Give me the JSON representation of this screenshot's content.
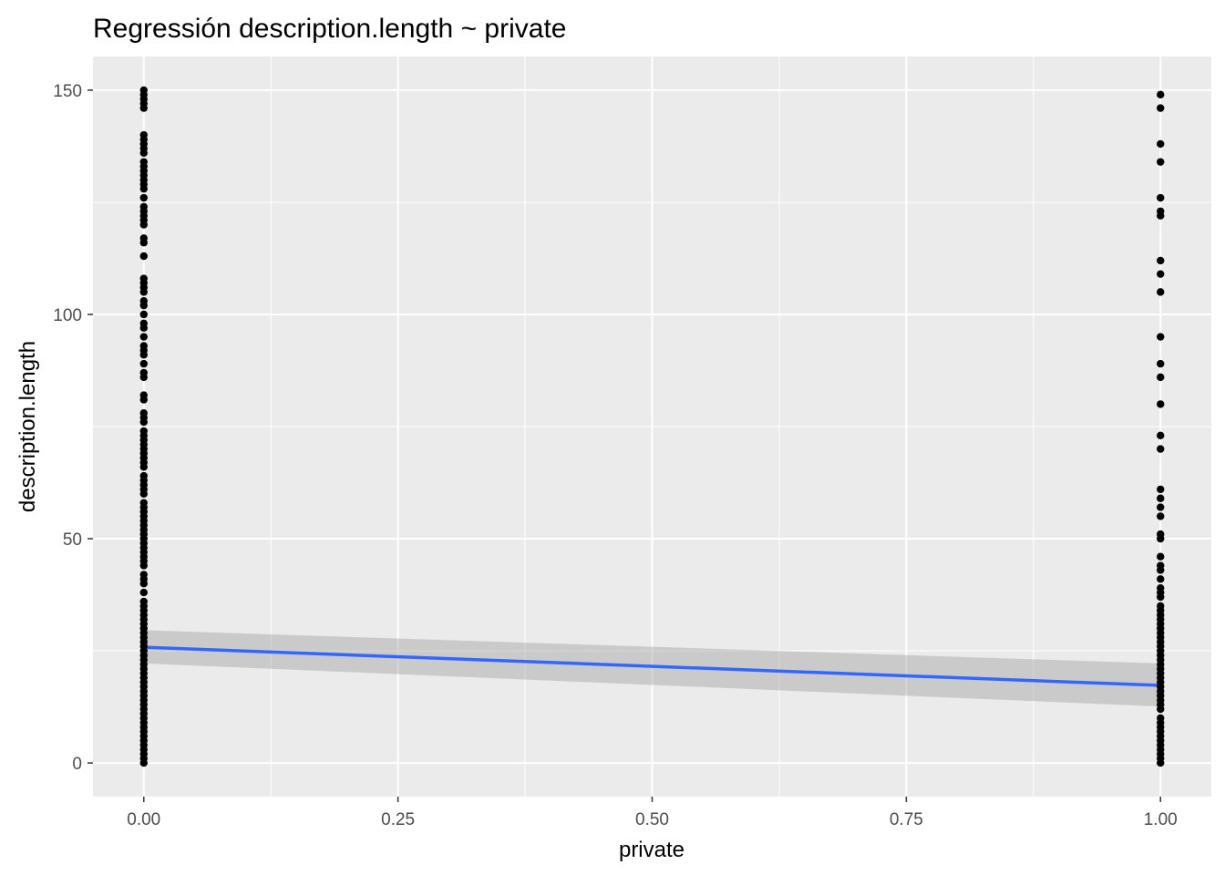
{
  "chart_data": {
    "type": "scatter",
    "title": "Regressión description.length ~ private",
    "xlabel": "private",
    "ylabel": "description.length",
    "xlim": [
      -0.05,
      1.05
    ],
    "ylim": [
      -7.5,
      157.5
    ],
    "x_ticks": [
      "0.00",
      "0.25",
      "0.50",
      "0.75",
      "1.00"
    ],
    "y_ticks": [
      "0",
      "50",
      "100",
      "150"
    ],
    "grid": true,
    "background": "#EBEBEB",
    "colors": {
      "points": "#000000",
      "fit_line": "#3366FF",
      "confidence_band": "#999999"
    },
    "series": [
      {
        "x": 0,
        "y": [
          0,
          1,
          2,
          3,
          4,
          5,
          6,
          7,
          8,
          9,
          10,
          11,
          12,
          13,
          14,
          15,
          16,
          17,
          18,
          19,
          20,
          21,
          22,
          23,
          24,
          25,
          26,
          27,
          28,
          29,
          30,
          31,
          32,
          33,
          34,
          35,
          36,
          38,
          40,
          41,
          42,
          44,
          45,
          46,
          47,
          48,
          49,
          50,
          51,
          52,
          53,
          54,
          55,
          56,
          57,
          58,
          60,
          61,
          62,
          63,
          64,
          66,
          67,
          68,
          69,
          70,
          71,
          72,
          73,
          74,
          76,
          77,
          78,
          81,
          82,
          86,
          87,
          89,
          91,
          92,
          93,
          95,
          97,
          98,
          100,
          102,
          103,
          105,
          106,
          107,
          108,
          113,
          116,
          117,
          120,
          121,
          122,
          123,
          124,
          126,
          128,
          129,
          130,
          131,
          132,
          133,
          134,
          136,
          137,
          138,
          139,
          140,
          146,
          147,
          148,
          149,
          150
        ]
      },
      {
        "x": 1,
        "y": [
          0,
          1,
          2,
          3,
          4,
          5,
          6,
          7,
          8,
          9,
          10,
          12,
          13,
          14,
          15,
          16,
          17,
          18,
          19,
          20,
          21,
          22,
          23,
          24,
          25,
          26,
          27,
          28,
          29,
          30,
          31,
          32,
          33,
          34,
          35,
          37,
          38,
          39,
          41,
          43,
          44,
          46,
          50,
          51,
          55,
          57,
          59,
          61,
          70,
          73,
          80,
          86,
          89,
          95,
          105,
          109,
          112,
          122,
          123,
          126,
          134,
          138,
          146,
          149
        ]
      }
    ],
    "fit": {
      "x": [
        0,
        1
      ],
      "y": [
        25.8,
        17.3
      ],
      "ci_lower": [
        22.2,
        12.6
      ],
      "ci_upper": [
        29.6,
        22.2
      ]
    }
  }
}
